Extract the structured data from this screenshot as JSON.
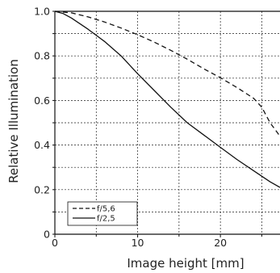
{
  "chart_data": {
    "type": "line",
    "xlabel": "Image height [mm]",
    "ylabel": "Relative Illumination",
    "xlim": [
      0,
      27.2
    ],
    "ylim": [
      0,
      1.0
    ],
    "x_ticks": [
      "0",
      "10",
      "20"
    ],
    "y_ticks": [
      "0",
      "0.2",
      "0.4",
      "0.6",
      "0.8",
      "1.0"
    ],
    "grid": true,
    "legend_position": "bottom-left",
    "series": [
      {
        "name": "f/5,6",
        "style": "dashed",
        "color": "#111111",
        "x": [
          0,
          2,
          4,
          6,
          8,
          10,
          12,
          14,
          16,
          18,
          20,
          22,
          24,
          25,
          26,
          27.2
        ],
        "y": [
          1.0,
          0.993,
          0.975,
          0.952,
          0.925,
          0.895,
          0.862,
          0.825,
          0.785,
          0.742,
          0.702,
          0.658,
          0.61,
          0.57,
          0.5,
          0.44
        ]
      },
      {
        "name": "f/2,5",
        "style": "solid",
        "color": "#111111",
        "x": [
          0,
          1,
          2,
          4,
          6,
          8,
          10,
          12,
          14,
          16,
          18,
          20,
          22,
          24,
          26,
          27.2
        ],
        "y": [
          1.0,
          0.99,
          0.97,
          0.92,
          0.865,
          0.8,
          0.72,
          0.645,
          0.57,
          0.5,
          0.445,
          0.39,
          0.335,
          0.285,
          0.235,
          0.21
        ]
      }
    ]
  }
}
